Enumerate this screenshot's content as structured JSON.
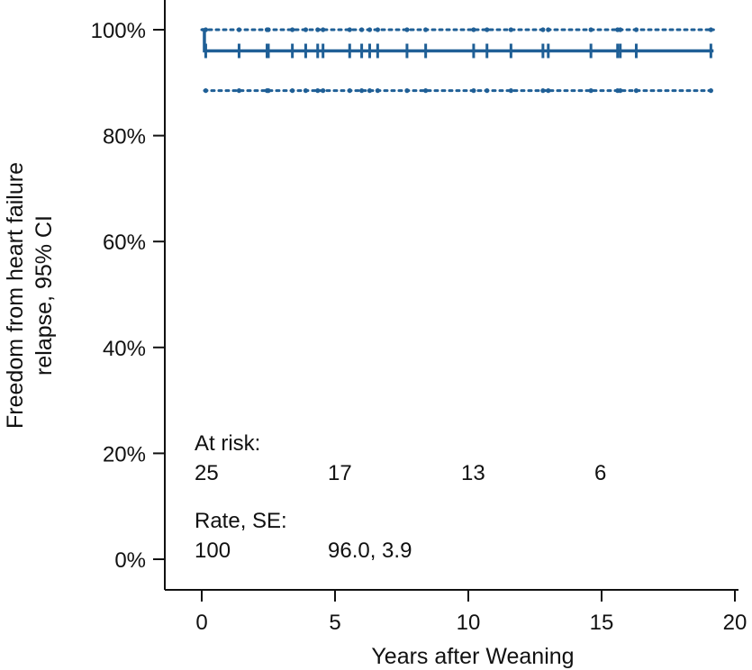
{
  "chart_data": {
    "type": "line",
    "title": "",
    "xlabel": "Years after Weaning",
    "ylabel_lines": [
      "Freedom from heart failure",
      "relapse, 95% CI"
    ],
    "xlim": [
      -1,
      20
    ],
    "ylim": [
      -5,
      105
    ],
    "xticks": [
      0,
      5,
      10,
      15,
      20
    ],
    "yticks": [
      0,
      20,
      40,
      60,
      80,
      100
    ],
    "ytick_labels": [
      "0%",
      "20%",
      "40%",
      "60%",
      "80%",
      "100%"
    ],
    "grid": false,
    "legend": "none",
    "series_color": "#1f5f96",
    "series": [
      {
        "role": "estimate",
        "step_x": [
          0,
          0.1,
          19.2
        ],
        "step_y": [
          100,
          96,
          96
        ]
      },
      {
        "role": "ci_upper",
        "step_x": [
          0,
          19.2
        ],
        "step_y": [
          100,
          100
        ]
      },
      {
        "role": "ci_lower",
        "step_x": [
          0.1,
          19.2
        ],
        "step_y": [
          88.5,
          88.5
        ]
      }
    ],
    "censor_times": [
      0.15,
      1.4,
      2.45,
      2.5,
      3.4,
      3.9,
      4.35,
      4.55,
      5.55,
      6.0,
      6.3,
      6.6,
      7.7,
      8.4,
      10.2,
      10.7,
      11.6,
      12.8,
      13.0,
      14.6,
      15.6,
      15.7,
      16.3,
      19.1
    ],
    "censor_y": 96,
    "annotations": {
      "at_risk_label": "At risk:",
      "at_risk": [
        {
          "x": 0,
          "label": "25"
        },
        {
          "x": 5,
          "label": "17"
        },
        {
          "x": 10,
          "label": "13"
        },
        {
          "x": 15,
          "label": "6"
        }
      ],
      "rate_label": "Rate, SE:",
      "rate": [
        {
          "x": 0,
          "label": "100"
        },
        {
          "x": 5,
          "label": "96.0, 3.9"
        }
      ]
    }
  }
}
